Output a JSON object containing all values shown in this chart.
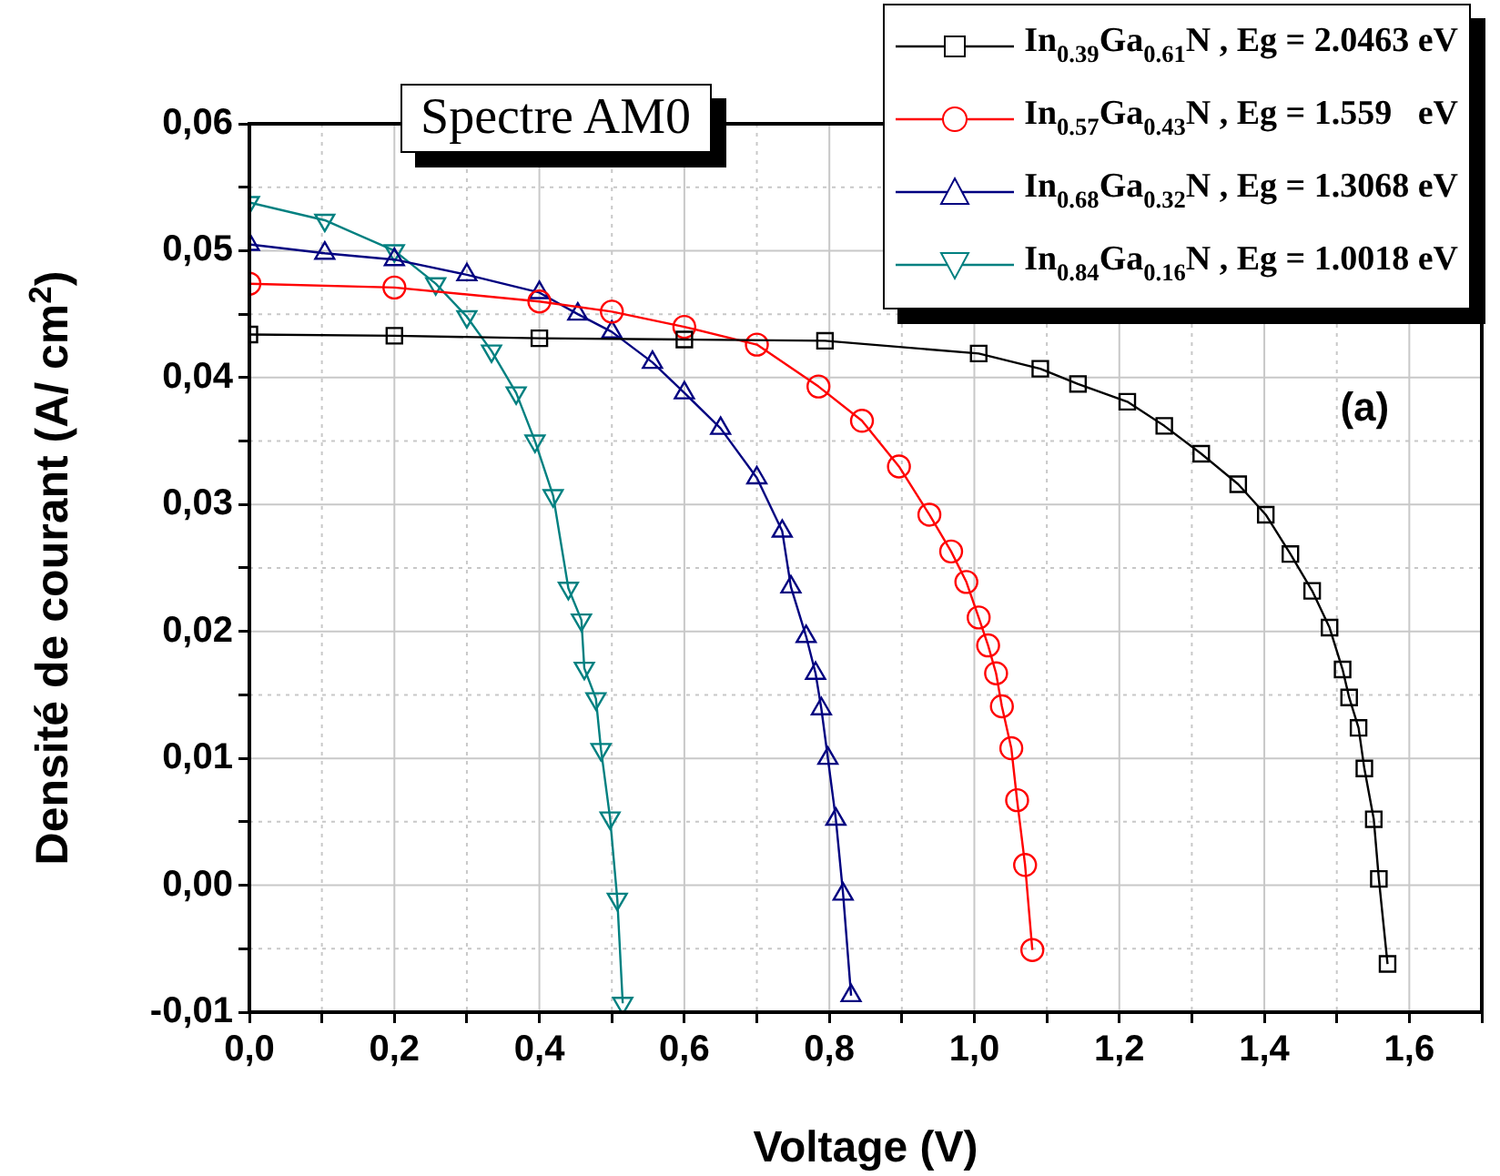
{
  "chart_data": {
    "type": "line",
    "xlabel": "Voltage (V)",
    "ylabel": "Densité de courant (A/ cm$^{2}$)",
    "annotations": [
      "Spectre AM0",
      "(a)"
    ],
    "xlim": [
      0,
      1.7
    ],
    "ylim": [
      -0.01,
      0.06
    ],
    "xticks": [
      {
        "value": 0,
        "label": "0,0"
      },
      {
        "value": 0.1,
        "label": null
      },
      {
        "value": 0.2,
        "label": "0,2"
      },
      {
        "value": 0.3,
        "label": null
      },
      {
        "value": 0.4,
        "label": "0,4"
      },
      {
        "value": 0.5,
        "label": null
      },
      {
        "value": 0.6,
        "label": "0,6"
      },
      {
        "value": 0.7,
        "label": null
      },
      {
        "value": 0.8,
        "label": "0,8"
      },
      {
        "value": 0.9,
        "label": null
      },
      {
        "value": 1,
        "label": "1,0"
      },
      {
        "value": 1.1,
        "label": null
      },
      {
        "value": 1.2,
        "label": "1,2"
      },
      {
        "value": 1.3,
        "label": null
      },
      {
        "value": 1.4,
        "label": "1,4"
      },
      {
        "value": 1.5,
        "label": null
      },
      {
        "value": 1.6,
        "label": "1,6"
      },
      {
        "value": 1.7,
        "label": null
      }
    ],
    "yticks": [
      {
        "value": -0.01,
        "label": "-0,01"
      },
      {
        "value": -0.005,
        "label": null
      },
      {
        "value": 0,
        "label": "0,00"
      },
      {
        "value": 0.005,
        "label": null
      },
      {
        "value": 0.01,
        "label": "0,01"
      },
      {
        "value": 0.015,
        "label": null
      },
      {
        "value": 0.02,
        "label": "0,02"
      },
      {
        "value": 0.025,
        "label": null
      },
      {
        "value": 0.03,
        "label": "0,03"
      },
      {
        "value": 0.035,
        "label": null
      },
      {
        "value": 0.04,
        "label": "0,04"
      },
      {
        "value": 0.045,
        "label": null
      },
      {
        "value": 0.05,
        "label": "0,05"
      },
      {
        "value": 0.055,
        "label": null
      },
      {
        "value": 0.06,
        "label": "0,06"
      }
    ],
    "grid": true,
    "legend": "top right",
    "line_style": "solid",
    "series": [
      {
        "name": "In$_{0.39}$Ga$_{0.61}$N , Eg = 2.0463 eV",
        "color": "#000000",
        "marker": "square",
        "x": [
          0,
          0.2,
          0.4,
          0.6,
          0.794,
          1.006,
          1.091,
          1.143,
          1.211,
          1.262,
          1.313,
          1.364,
          1.402,
          1.436,
          1.466,
          1.49,
          1.508,
          1.517,
          1.53,
          1.538,
          1.551,
          1.558,
          1.57
        ],
        "values": [
          0.0434,
          0.0433,
          0.0431,
          0.043,
          0.0429,
          0.0419,
          0.0407,
          0.0395,
          0.0381,
          0.0362,
          0.034,
          0.0316,
          0.0292,
          0.0261,
          0.0232,
          0.0203,
          0.017,
          0.0148,
          0.0124,
          0.0092,
          0.0052,
          0.0005,
          -0.0062
        ]
      },
      {
        "name": "In$_{0.57}$Ga$_{0.43}$N , Eg = 1.559   eV",
        "color": "#ff0000",
        "marker": "circle",
        "x": [
          0,
          0.2,
          0.4,
          0.5,
          0.6,
          0.7,
          0.785,
          0.845,
          0.896,
          0.938,
          0.968,
          0.989,
          1.006,
          1.019,
          1.03,
          1.038,
          1.051,
          1.059,
          1.07,
          1.08
        ],
        "values": [
          0.0474,
          0.0471,
          0.046,
          0.0452,
          0.044,
          0.0426,
          0.0393,
          0.0366,
          0.033,
          0.0292,
          0.0263,
          0.0239,
          0.0211,
          0.0189,
          0.0167,
          0.0141,
          0.0108,
          0.0067,
          0.0016,
          -0.0051
        ]
      },
      {
        "name": "In$_{0.68}$Ga$_{0.32}$N , Eg = 1.3068 eV",
        "color": "#000080",
        "marker": "triangle",
        "x": [
          0,
          0.104,
          0.2,
          0.3,
          0.4,
          0.453,
          0.5,
          0.556,
          0.6,
          0.65,
          0.7,
          0.735,
          0.747,
          0.768,
          0.781,
          0.789,
          0.798,
          0.809,
          0.819,
          0.83
        ],
        "values": [
          0.0505,
          0.0498,
          0.0493,
          0.0481,
          0.0467,
          0.045,
          0.0436,
          0.0412,
          0.0388,
          0.036,
          0.0321,
          0.0279,
          0.0235,
          0.0196,
          0.0167,
          0.0139,
          0.01,
          0.0052,
          -0.0007,
          -0.0087
        ]
      },
      {
        "name": "In$_{0.84}$Ga$_{0.16}$N , Eg = 1.0018 eV",
        "color": "#008080",
        "marker": "triangle-down",
        "x": [
          0,
          0.104,
          0.2,
          0.257,
          0.3,
          0.334,
          0.368,
          0.394,
          0.419,
          0.44,
          0.458,
          0.462,
          0.478,
          0.485,
          0.4975,
          0.5075,
          0.515
        ],
        "values": [
          0.0538,
          0.0524,
          0.05,
          0.0474,
          0.0448,
          0.0421,
          0.0388,
          0.035,
          0.0307,
          0.0234,
          0.0209,
          0.0171,
          0.0147,
          0.0107,
          0.0053,
          -0.0011,
          -0.0093
        ]
      }
    ]
  }
}
